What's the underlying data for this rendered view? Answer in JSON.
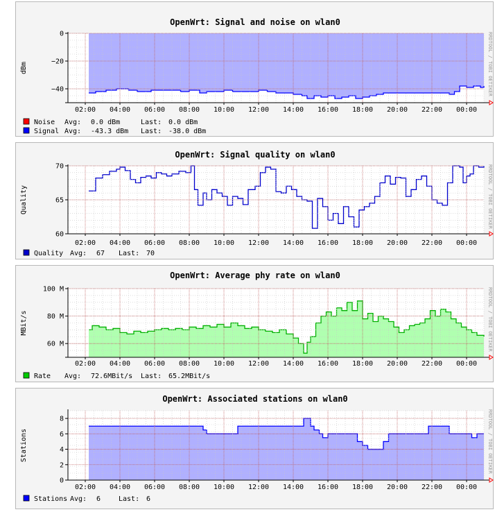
{
  "chart_data": [
    {
      "type": "area",
      "title": "OpenWrt: Signal and noise on wlan0",
      "ylabel": "dBm",
      "ylim": [
        -50,
        0
      ],
      "yticks": [
        0,
        -20,
        -40
      ],
      "ytick_labels": [
        "0",
        "−20",
        "−40"
      ],
      "xlim": [
        1.0,
        25.0
      ],
      "xticks": [
        2,
        4,
        6,
        8,
        10,
        12,
        14,
        16,
        18,
        20,
        22,
        24
      ],
      "xtick_labels": [
        "02:00",
        "04:00",
        "06:00",
        "08:00",
        "10:00",
        "12:00",
        "14:00",
        "16:00",
        "18:00",
        "20:00",
        "22:00",
        "00:00"
      ],
      "fill_color": "#b0b0ff",
      "line_color": "#0000ff",
      "baseline": 0,
      "series": [
        {
          "name": "Noise",
          "color": "#ff0000",
          "avg": "0.0 dBm",
          "last": "0.0 dBm",
          "x": [],
          "y": []
        },
        {
          "name": "Signal",
          "color": "#0000ff",
          "avg": "-43.3 dBm",
          "last": "-38.0 dBm",
          "x": [
            2.2,
            2.6,
            3.2,
            3.8,
            4.5,
            5.0,
            5.8,
            6.5,
            7.0,
            7.5,
            8.0,
            8.3,
            8.6,
            9.0,
            9.5,
            10.0,
            10.5,
            11.0,
            11.5,
            12.0,
            12.5,
            13.0,
            13.5,
            14.0,
            14.5,
            14.8,
            15.2,
            15.6,
            16.0,
            16.4,
            16.8,
            17.2,
            17.6,
            18.0,
            18.4,
            18.8,
            19.2,
            19.6,
            20.0,
            20.5,
            21.0,
            21.5,
            22.0,
            22.5,
            23.0,
            23.3,
            23.6,
            24.0,
            24.4,
            24.8,
            25.0
          ],
          "y": [
            -43,
            -42,
            -41,
            -40,
            -41,
            -42,
            -41,
            -41,
            -41,
            -42,
            -41,
            -41,
            -43,
            -42,
            -42,
            -41,
            -42,
            -42,
            -42,
            -41,
            -42,
            -43,
            -43,
            -44,
            -45,
            -47,
            -45,
            -46,
            -45,
            -47,
            -46,
            -45,
            -47,
            -46,
            -45,
            -44,
            -43,
            -43,
            -43,
            -43,
            -43,
            -43,
            -43,
            -43,
            -44,
            -42,
            -38,
            -39,
            -38,
            -39,
            -38
          ]
        }
      ]
    },
    {
      "type": "line",
      "title": "OpenWrt: Signal quality on wlan0",
      "ylabel": "Quality",
      "ylim": [
        60,
        70
      ],
      "yticks": [
        60,
        65,
        70
      ],
      "ytick_labels": [
        "60",
        "65",
        "70"
      ],
      "xlim": [
        1.0,
        25.0
      ],
      "xticks": [
        2,
        4,
        6,
        8,
        10,
        12,
        14,
        16,
        18,
        20,
        22,
        24
      ],
      "xtick_labels": [
        "02:00",
        "04:00",
        "06:00",
        "08:00",
        "10:00",
        "12:00",
        "14:00",
        "16:00",
        "18:00",
        "20:00",
        "22:00",
        "00:00"
      ],
      "line_color": "#0000cc",
      "series": [
        {
          "name": "Quality",
          "color": "#0000cc",
          "avg": "67",
          "last": "70",
          "x": [
            2.2,
            2.5,
            2.6,
            3.0,
            3.4,
            3.8,
            4.0,
            4.3,
            4.6,
            4.9,
            5.2,
            5.5,
            5.8,
            6.1,
            6.4,
            6.7,
            7.0,
            7.4,
            7.8,
            8.1,
            8.3,
            8.5,
            8.8,
            9.0,
            9.3,
            9.6,
            9.9,
            10.2,
            10.5,
            10.8,
            11.1,
            11.4,
            11.8,
            12.1,
            12.4,
            12.7,
            13.0,
            13.3,
            13.6,
            13.9,
            14.2,
            14.5,
            14.8,
            15.1,
            15.4,
            15.7,
            16.0,
            16.3,
            16.6,
            16.9,
            17.2,
            17.5,
            17.8,
            18.1,
            18.4,
            18.7,
            19.0,
            19.3,
            19.6,
            19.9,
            20.2,
            20.5,
            20.8,
            21.1,
            21.4,
            21.7,
            22.0,
            22.3,
            22.6,
            22.9,
            23.2,
            23.4,
            23.6,
            23.8,
            24.0,
            24.2,
            24.4,
            24.7,
            25.0
          ],
          "y": [
            66.3,
            66.3,
            68.2,
            68.7,
            69.2,
            69.5,
            69.8,
            69.3,
            68.0,
            67.5,
            68.3,
            68.5,
            68.2,
            69.0,
            68.8,
            68.5,
            68.8,
            69.2,
            69.0,
            70.0,
            66.5,
            64.2,
            66.0,
            65.0,
            66.5,
            66.0,
            65.5,
            64.2,
            65.5,
            65.2,
            64.3,
            66.5,
            67.0,
            69.0,
            69.8,
            69.5,
            66.2,
            66.0,
            67.0,
            66.5,
            65.5,
            65.0,
            64.8,
            60.8,
            65.2,
            64.0,
            62.0,
            63.0,
            61.5,
            64.0,
            62.5,
            61.0,
            63.5,
            64.0,
            64.5,
            65.5,
            67.5,
            68.5,
            67.3,
            68.3,
            68.2,
            65.5,
            66.5,
            68.0,
            68.5,
            67.0,
            65.0,
            64.5,
            64.2,
            67.5,
            70.0,
            70.0,
            69.8,
            67.5,
            68.5,
            68.8,
            70.0,
            69.8,
            70.0
          ]
        }
      ]
    },
    {
      "type": "area",
      "title": "OpenWrt: Average phy rate on wlan0",
      "ylabel": "MBit/s",
      "ylim": [
        50,
        100
      ],
      "yticks": [
        60,
        80,
        100
      ],
      "ytick_labels": [
        "60 M",
        "80 M",
        "100 M"
      ],
      "xlim": [
        1.0,
        25.0
      ],
      "xticks": [
        2,
        4,
        6,
        8,
        10,
        12,
        14,
        16,
        18,
        20,
        22,
        24
      ],
      "xtick_labels": [
        "02:00",
        "04:00",
        "06:00",
        "08:00",
        "10:00",
        "12:00",
        "14:00",
        "16:00",
        "18:00",
        "20:00",
        "22:00",
        "00:00"
      ],
      "fill_color": "#b0ffb0",
      "line_color": "#00b000",
      "baseline": 50,
      "series": [
        {
          "name": "Rate",
          "color": "#00cc00",
          "avg": "72.6MBit/s",
          "last": "65.2MBit/s",
          "x": [
            2.2,
            2.4,
            2.8,
            3.2,
            3.6,
            4.0,
            4.4,
            4.8,
            5.2,
            5.6,
            6.0,
            6.4,
            6.8,
            7.2,
            7.6,
            8.0,
            8.4,
            8.8,
            9.2,
            9.6,
            10.0,
            10.4,
            10.8,
            11.2,
            11.6,
            12.0,
            12.4,
            12.8,
            13.2,
            13.6,
            14.0,
            14.3,
            14.6,
            14.8,
            15.0,
            15.3,
            15.6,
            15.9,
            16.2,
            16.5,
            16.8,
            17.1,
            17.4,
            17.7,
            18.0,
            18.3,
            18.6,
            18.9,
            19.2,
            19.5,
            19.8,
            20.1,
            20.4,
            20.7,
            21.0,
            21.3,
            21.6,
            21.9,
            22.2,
            22.5,
            22.8,
            23.1,
            23.4,
            23.7,
            24.0,
            24.3,
            24.6,
            25.0
          ],
          "y": [
            70,
            73,
            72,
            70,
            71,
            68,
            67,
            69,
            68,
            69,
            70,
            71,
            70,
            71,
            70,
            72,
            71,
            73,
            72,
            74,
            72,
            75,
            73,
            71,
            72,
            70,
            69,
            68,
            70,
            67,
            64,
            60,
            53,
            61,
            65,
            75,
            80,
            83,
            80,
            86,
            84,
            90,
            84,
            91,
            78,
            82,
            76,
            80,
            78,
            76,
            72,
            68,
            70,
            73,
            74,
            75,
            78,
            84,
            80,
            85,
            83,
            78,
            75,
            72,
            70,
            68,
            66,
            65
          ]
        }
      ]
    },
    {
      "type": "area",
      "title": "OpenWrt: Associated stations on wlan0",
      "ylabel": "Stations",
      "ylim": [
        0,
        9
      ],
      "yticks": [
        0,
        2,
        4,
        6,
        8
      ],
      "ytick_labels": [
        "0",
        "2",
        "4",
        "6",
        "8"
      ],
      "xlim": [
        1.0,
        25.0
      ],
      "xticks": [
        2,
        4,
        6,
        8,
        10,
        12,
        14,
        16,
        18,
        20,
        22,
        24
      ],
      "xtick_labels": [
        "02:00",
        "04:00",
        "06:00",
        "08:00",
        "10:00",
        "12:00",
        "14:00",
        "16:00",
        "18:00",
        "20:00",
        "22:00",
        "00:00"
      ],
      "fill_color": "#b0b0ff",
      "line_color": "#0000ff",
      "baseline": 0,
      "series": [
        {
          "name": "Stations",
          "color": "#0000ff",
          "avg": "6",
          "last": "6",
          "x": [
            2.2,
            2.5,
            8.5,
            8.8,
            9.0,
            10.5,
            10.8,
            14.5,
            14.6,
            14.9,
            15.0,
            15.2,
            15.5,
            15.7,
            16.0,
            17.5,
            17.7,
            18.0,
            18.3,
            18.6,
            19.0,
            19.2,
            19.5,
            21.0,
            21.5,
            21.8,
            22.3,
            22.6,
            23.0,
            24.0,
            24.3,
            24.6,
            25.0
          ],
          "y": [
            7,
            7,
            7,
            6.5,
            6,
            6,
            7,
            7,
            8,
            8,
            7,
            6.5,
            6,
            5.5,
            6,
            6,
            5,
            4.5,
            4,
            4,
            4,
            5,
            6,
            6,
            6,
            7,
            7,
            7,
            6,
            6,
            5.5,
            6,
            6
          ]
        }
      ]
    }
  ],
  "legend_labels": {
    "avg": "Avg:",
    "last": "Last:"
  },
  "watermark": "RRDTOOL / TOBI OETIKER"
}
